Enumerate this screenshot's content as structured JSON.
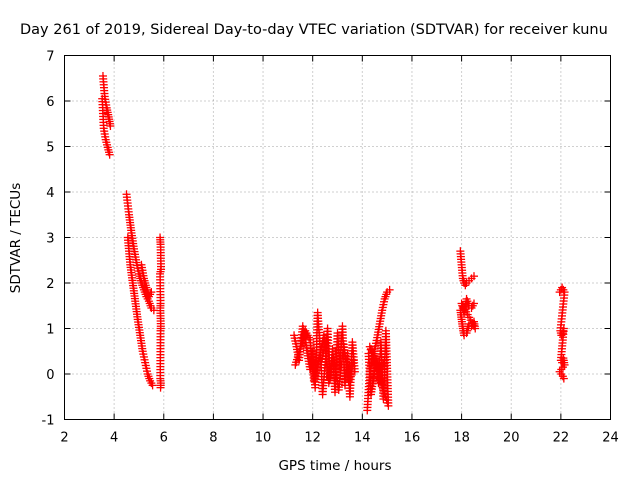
{
  "chart_data": {
    "type": "scatter",
    "title": "Day 261 of 2019, Sidereal Day-to-day VTEC variation (SDTVAR) for receiver kunu",
    "xlabel": "GPS time / hours",
    "ylabel": "SDTVAR / TECUs",
    "xlim": [
      2,
      24
    ],
    "ylim": [
      -1,
      7
    ],
    "xticks": [
      2,
      4,
      6,
      8,
      10,
      12,
      14,
      16,
      18,
      20,
      22,
      24
    ],
    "yticks": [
      -1,
      0,
      1,
      2,
      3,
      4,
      5,
      6,
      7
    ],
    "grid": true,
    "marker": "+",
    "color": "#ff0000",
    "series": [
      {
        "name": "SDTVAR",
        "segments": [
          {
            "x": [
              3.55,
              3.62,
              3.7,
              3.78,
              3.85
            ],
            "y": [
              6.55,
              6.1,
              5.85,
              5.65,
              5.45
            ]
          },
          {
            "x": [
              3.52,
              3.58,
              3.66,
              3.74,
              3.82
            ],
            "y": [
              6.05,
              5.4,
              5.15,
              4.98,
              4.82
            ]
          },
          {
            "x": [
              4.5,
              4.6,
              4.7,
              4.8,
              4.9,
              5.0,
              5.1,
              5.2,
              5.3,
              5.4,
              5.5,
              5.6
            ],
            "y": [
              3.95,
              3.5,
              3.1,
              2.75,
              2.45,
              2.2,
              2.0,
              1.85,
              1.7,
              1.6,
              1.45,
              1.4
            ]
          },
          {
            "x": [
              4.55,
              4.65,
              4.75,
              4.85,
              4.95,
              5.05,
              5.15,
              5.25,
              5.35,
              5.45,
              5.55
            ],
            "y": [
              3.0,
              2.4,
              2.0,
              1.6,
              1.2,
              0.85,
              0.5,
              0.25,
              0.0,
              -0.15,
              -0.25
            ]
          },
          {
            "x": [
              5.1,
              5.2,
              5.3,
              5.4,
              5.5
            ],
            "y": [
              2.4,
              2.1,
              1.9,
              1.7,
              1.8
            ]
          },
          {
            "x": [
              5.85,
              5.87,
              5.89,
              5.85,
              5.87,
              5.86,
              5.88,
              5.87,
              5.86,
              5.88,
              5.87
            ],
            "y": [
              3.0,
              2.85,
              2.3,
              2.2,
              1.55,
              1.45,
              1.05,
              0.95,
              -0.1,
              -0.2,
              -0.3
            ]
          },
          {
            "x": [
              11.25,
              11.35,
              11.45,
              11.6,
              11.7,
              11.8,
              11.9,
              12.0,
              12.1,
              12.2,
              12.3,
              12.4,
              12.5,
              12.6,
              12.7,
              12.8,
              12.9,
              13.0,
              13.1,
              13.2,
              13.3,
              13.4,
              13.5,
              13.6,
              13.7
            ],
            "y": [
              0.85,
              0.6,
              0.3,
              1.05,
              0.75,
              0.4,
              0.1,
              0.5,
              -0.3,
              1.35,
              0.6,
              -0.45,
              0.2,
              1.0,
              -0.1,
              0.55,
              -0.4,
              0.9,
              0.15,
              1.05,
              -0.25,
              0.45,
              -0.5,
              0.7,
              0.05
            ]
          },
          {
            "x": [
              11.3,
              11.5,
              11.7,
              11.9,
              12.05,
              12.25,
              12.45,
              12.65,
              12.85,
              13.05,
              13.25,
              13.45,
              13.65
            ],
            "y": [
              0.2,
              0.55,
              0.95,
              0.75,
              -0.15,
              0.3,
              0.85,
              -0.2,
              0.35,
              -0.35,
              0.65,
              -0.15,
              0.3
            ]
          },
          {
            "x": [
              14.2,
              14.3,
              14.4,
              14.5,
              14.6,
              14.7,
              14.8,
              14.9,
              15.0,
              15.1
            ],
            "y": [
              -0.8,
              0.05,
              0.35,
              0.55,
              0.8,
              1.1,
              1.4,
              1.65,
              1.8,
              1.85
            ]
          },
          {
            "x": [
              14.25,
              14.35,
              14.45,
              14.55,
              14.65,
              14.75,
              14.85,
              14.95,
              15.05,
              14.3,
              14.5,
              14.7,
              14.9
            ],
            "y": [
              0.45,
              -0.45,
              -0.1,
              0.25,
              -0.2,
              0.7,
              -0.55,
              0.95,
              -0.7,
              0.6,
              0.4,
              0.1,
              0.3
            ]
          },
          {
            "x": [
              17.95,
              18.0,
              18.05,
              18.1,
              18.15,
              18.2,
              18.3,
              18.4,
              18.5
            ],
            "y": [
              2.7,
              2.4,
              2.1,
              2.0,
              1.95,
              2.0,
              2.05,
              2.1,
              2.15
            ]
          },
          {
            "x": [
              17.95,
              18.0,
              18.05,
              18.1,
              18.2,
              18.3,
              18.4,
              18.5,
              18.55,
              18.0,
              18.1,
              18.2,
              18.3,
              18.4,
              18.5
            ],
            "y": [
              1.4,
              1.2,
              1.0,
              0.85,
              0.9,
              1.1,
              1.05,
              1.15,
              1.0,
              1.55,
              1.35,
              1.65,
              1.5,
              1.45,
              1.55
            ]
          },
          {
            "x": [
              21.95,
              22.0,
              22.05,
              22.1,
              22.15,
              21.98,
              22.02,
              22.08,
              22.12,
              22.0,
              22.05,
              22.1,
              22.15,
              21.95,
              22.08,
              22.12
            ],
            "y": [
              1.8,
              1.85,
              1.9,
              1.85,
              1.8,
              0.95,
              0.85,
              0.9,
              1.0,
              0.3,
              0.25,
              0.35,
              0.2,
              0.05,
              -0.05,
              -0.1
            ]
          }
        ]
      }
    ]
  }
}
